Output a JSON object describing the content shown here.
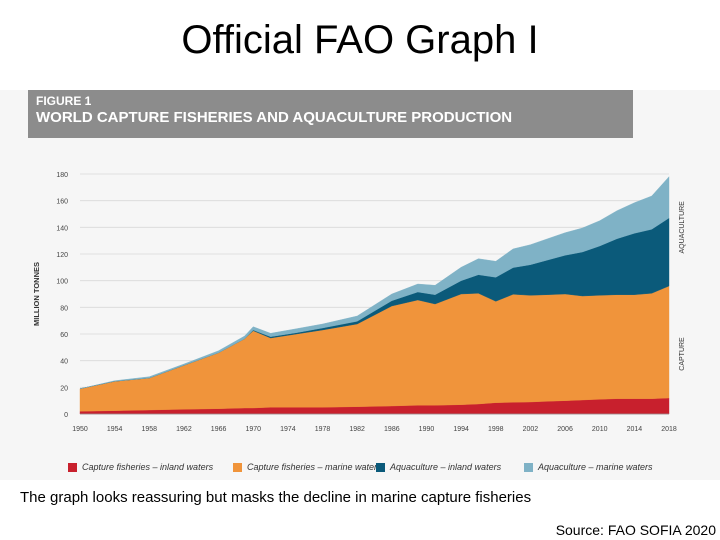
{
  "slide": {
    "title": "Official FAO Graph I",
    "caption": "The graph looks reassuring but masks the decline in marine capture fisheries",
    "source": "Source: FAO SOFIA 2020"
  },
  "figure": {
    "label": "FIGURE 1",
    "title": "WORLD CAPTURE FISHERIES AND AQUACULTURE PRODUCTION"
  },
  "chart_data": {
    "type": "area",
    "stacked": true,
    "title": "WORLD CAPTURE FISHERIES AND AQUACULTURE PRODUCTION",
    "ylabel": "MILLION TONNES",
    "xlabel": "",
    "ylim": [
      0,
      180
    ],
    "yticks": [
      0,
      20,
      40,
      60,
      80,
      100,
      120,
      140,
      160,
      180
    ],
    "xlim": [
      1950,
      2018
    ],
    "xticks": [
      1950,
      1954,
      1958,
      1962,
      1966,
      1970,
      1974,
      1978,
      1982,
      1986,
      1990,
      1994,
      1998,
      2002,
      2006,
      2010,
      2014,
      2018
    ],
    "xtick_labels": [
      "1950",
      "1954",
      "1958",
      "1962",
      "1966",
      "1970",
      "1974",
      "1978",
      "1982",
      "1986",
      "1990",
      "1994",
      "1998",
      "2002",
      "2006",
      "2010",
      "2014",
      "2018"
    ],
    "x": [
      1950,
      1954,
      1958,
      1962,
      1966,
      1969,
      1970,
      1972,
      1975,
      1978,
      1982,
      1986,
      1989,
      1991,
      1994,
      1996,
      1998,
      2000,
      2002,
      2004,
      2006,
      2008,
      2010,
      2012,
      2014,
      2016,
      2018
    ],
    "series": [
      {
        "name": "Capture fisheries – inland waters",
        "color": "#c8202d",
        "values": [
          2,
          2.5,
          3,
          3.5,
          4,
          4.5,
          4.5,
          5,
          5,
          5,
          5.5,
          6,
          6.5,
          6.5,
          7,
          7.5,
          8.5,
          8.8,
          9,
          9.5,
          10,
          10.5,
          11,
          11.5,
          11.5,
          11.5,
          12
        ]
      },
      {
        "name": "Capture fisheries – marine waters",
        "color": "#f0943b",
        "values": [
          17,
          22,
          24,
          33,
          42,
          52,
          58,
          52,
          55,
          58,
          62,
          75,
          79,
          76,
          83,
          83,
          76,
          81,
          80,
          80,
          80,
          78,
          78,
          78,
          78,
          79,
          84
        ]
      },
      {
        "name": "Aquaculture – inland waters",
        "color": "#0b5a7a",
        "values": [
          0,
          0,
          0,
          0,
          0,
          0,
          0.5,
          1,
          1,
          1.5,
          2,
          4,
          6,
          7,
          10,
          14,
          18,
          20,
          23,
          26,
          29,
          33,
          37,
          42,
          46,
          48,
          51
        ]
      },
      {
        "name": "Aquaculture – marine waters",
        "color": "#7fb2c6",
        "values": [
          0,
          0.5,
          1,
          1,
          1.5,
          2,
          2.5,
          2.5,
          3,
          3,
          4,
          5,
          6,
          7,
          10,
          12,
          12,
          14,
          15,
          16,
          17,
          18,
          19,
          21,
          23,
          25,
          31
        ]
      }
    ],
    "annotations": [
      "AQUACULTURE",
      "CAPTURE"
    ],
    "legend_position": "bottom"
  },
  "legend": [
    {
      "label": "Capture fisheries – inland waters",
      "color": "#c8202d"
    },
    {
      "label": "Capture fisheries – marine waters",
      "color": "#f0943b"
    },
    {
      "label": "Aquaculture – inland waters",
      "color": "#0b5a7a"
    },
    {
      "label": "Aquaculture – marine waters",
      "color": "#7fb2c6"
    }
  ]
}
